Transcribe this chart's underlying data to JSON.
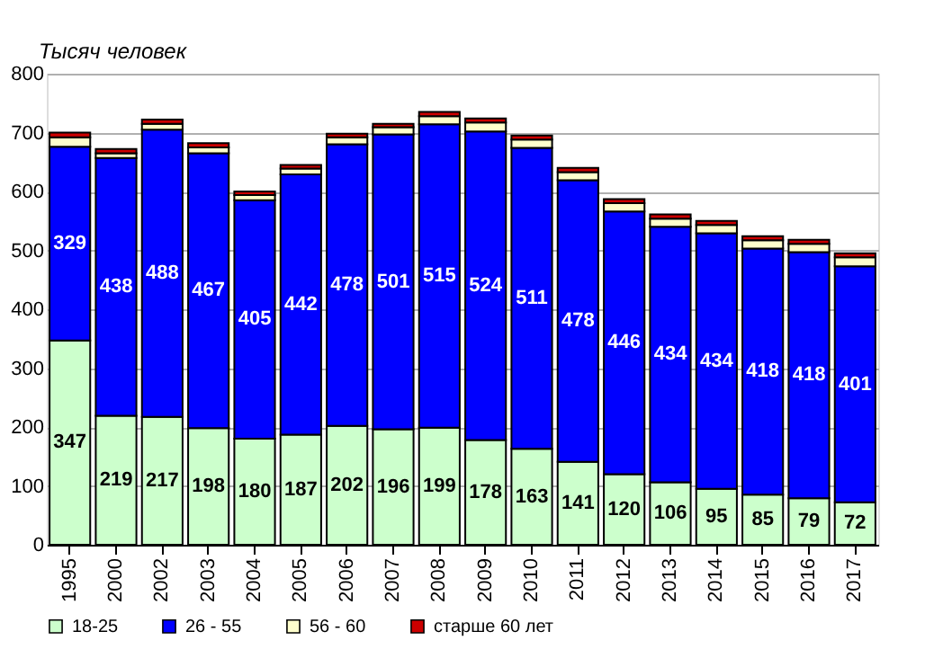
{
  "chart_data": {
    "type": "bar",
    "stacked": true,
    "ylabel": "Тысяч человек",
    "categories": [
      "1995",
      "2000",
      "2002",
      "2003",
      "2004",
      "2005",
      "2006",
      "2007",
      "2008",
      "2009",
      "2010",
      "2011",
      "2012",
      "2013",
      "2014",
      "2015",
      "2016",
      "2017"
    ],
    "series": [
      {
        "name": "18-25",
        "color": "#ccffcc",
        "data_labels": true,
        "values": [
          347,
          219,
          217,
          198,
          180,
          187,
          202,
          196,
          199,
          178,
          163,
          141,
          120,
          106,
          95,
          85,
          79,
          72
        ]
      },
      {
        "name": "26 - 55",
        "color": "#0000ff",
        "data_labels": true,
        "values": [
          329,
          438,
          488,
          467,
          405,
          442,
          478,
          501,
          515,
          524,
          511,
          478,
          446,
          434,
          434,
          418,
          418,
          401
        ]
      },
      {
        "name": "56 - 60",
        "color": "#ffffcc",
        "values": [
          16,
          8,
          10,
          10,
          9,
          10,
          12,
          12,
          14,
          15,
          14,
          14,
          14,
          14,
          14,
          14,
          14,
          15
        ]
      },
      {
        "name": "старше 60 лет",
        "color": "#cc0000",
        "values": [
          8,
          7,
          7,
          7,
          6,
          6,
          6,
          6,
          7,
          7,
          7,
          7,
          7,
          7,
          7,
          7,
          7,
          7
        ]
      }
    ],
    "ylim": [
      0,
      800
    ],
    "yticks": [
      0,
      100,
      200,
      300,
      400,
      500,
      600,
      700,
      800
    ],
    "grid": "y",
    "legend": "bottom"
  }
}
